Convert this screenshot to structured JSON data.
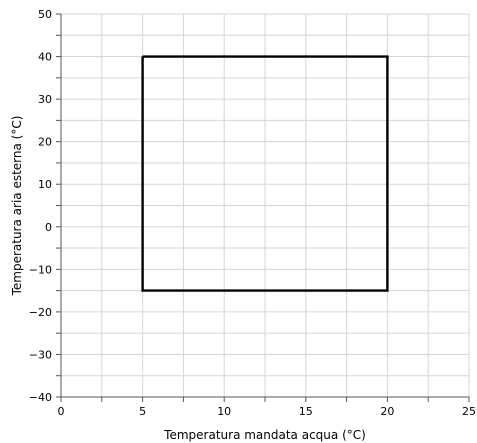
{
  "chart_data": {
    "type": "line",
    "title": "",
    "xlabel": "Temperatura mandata acqua (°C)",
    "ylabel": "Temperatura aria esterna (°C)",
    "xlim": [
      0,
      25
    ],
    "ylim": [
      -40,
      50
    ],
    "x_ticks": [
      0,
      5,
      10,
      15,
      20,
      25
    ],
    "y_ticks": [
      -40,
      -30,
      -20,
      -10,
      0,
      10,
      20,
      30,
      40,
      50
    ],
    "x_minor_step": 2.5,
    "y_minor_step": 5,
    "grid": true,
    "series": [
      {
        "color": "#000000",
        "x": [
          5,
          20,
          20,
          5,
          5
        ],
        "y": [
          40,
          40,
          -15,
          -15,
          40
        ]
      }
    ]
  }
}
